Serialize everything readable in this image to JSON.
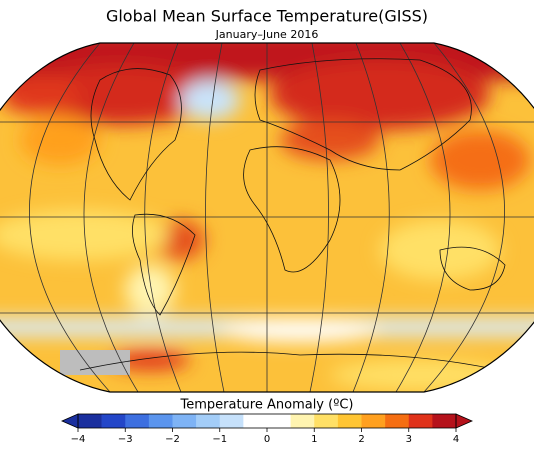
{
  "title": "Global Mean Surface Temperature(GISS)",
  "subtitle": "January–June 2016",
  "colorbar": {
    "label": "Temperature Anomaly (ºC)",
    "lim": [
      -4,
      4
    ],
    "ticks": [
      {
        "value": -4,
        "label": "−4"
      },
      {
        "value": -3,
        "label": "−3"
      },
      {
        "value": -2,
        "label": "−2"
      },
      {
        "value": -1,
        "label": "−1"
      },
      0,
      1,
      2,
      3,
      4
    ],
    "colors": [
      "#1a2f9e",
      "#2346c8",
      "#3d6fe0",
      "#5b95ee",
      "#7eb3f5",
      "#a3cdf8",
      "#c6e1fb",
      "#ffffff",
      "#ffffff",
      "#fff4b0",
      "#ffe066",
      "#ffc533",
      "#ffa01f",
      "#f56e12",
      "#e0321a",
      "#b5121b"
    ]
  }
}
